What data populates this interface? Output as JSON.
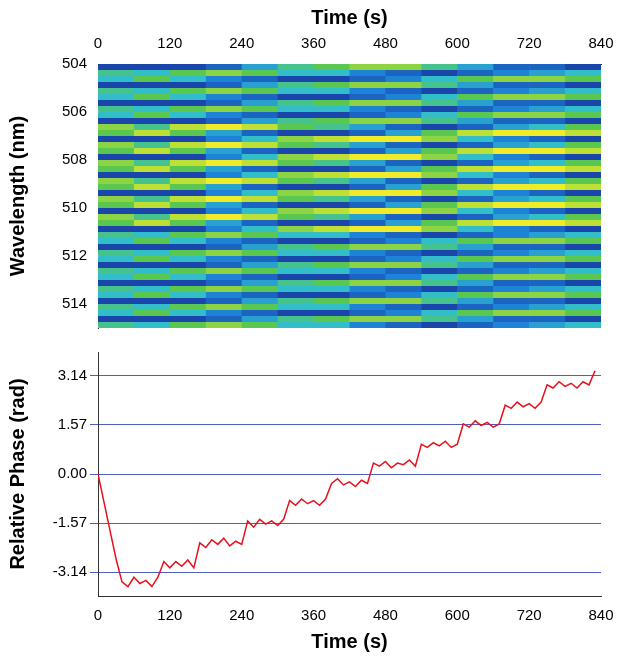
{
  "chart_data": [
    {
      "type": "heatmap",
      "x_label": "Time (s)",
      "y_label": "Wavelength (nm)",
      "xlim": [
        0,
        840
      ],
      "xticks": [
        0,
        120,
        240,
        360,
        480,
        600,
        720,
        840
      ],
      "ylim": [
        504,
        515
      ],
      "yticks": [
        504,
        506,
        508,
        510,
        512,
        514
      ],
      "grid": false,
      "x_bins": [
        0,
        60,
        120,
        180,
        240,
        300,
        360,
        420,
        480,
        540,
        600,
        660,
        720,
        780,
        840
      ],
      "y_bins": [
        504,
        504.25,
        504.5,
        504.75,
        505,
        505.25,
        505.5,
        505.75,
        506,
        506.25,
        506.5,
        506.75,
        507,
        507.25,
        507.5,
        507.75,
        508,
        508.25,
        508.5,
        508.75,
        509,
        509.25,
        509.5,
        509.75,
        510,
        510.25,
        510.5,
        510.75,
        511,
        511.25,
        511.5,
        511.75,
        512,
        512.25,
        512.5,
        512.75,
        513,
        513.25,
        513.5,
        513.75,
        514,
        514.25,
        514.5,
        514.75,
        515
      ],
      "cells": [
        [
          0.1,
          0.1,
          0.1,
          0.2,
          0.4,
          0.6,
          0.7,
          0.8,
          0.8,
          0.6,
          0.4,
          0.2,
          0.2,
          0.1
        ],
        [
          0.6,
          0.5,
          0.7,
          0.8,
          0.7,
          0.5,
          0.5,
          0.3,
          0.2,
          0.1,
          0.2,
          0.3,
          0.4,
          0.5
        ],
        [
          0.5,
          0.7,
          0.5,
          0.3,
          0.2,
          0.1,
          0.1,
          0.2,
          0.3,
          0.5,
          0.7,
          0.8,
          0.8,
          0.7
        ],
        [
          0.1,
          0.1,
          0.1,
          0.2,
          0.4,
          0.6,
          0.7,
          0.8,
          0.8,
          0.6,
          0.4,
          0.2,
          0.2,
          0.1
        ],
        [
          0.6,
          0.5,
          0.7,
          0.8,
          0.7,
          0.5,
          0.5,
          0.3,
          0.2,
          0.1,
          0.2,
          0.3,
          0.4,
          0.5
        ],
        [
          0.5,
          0.7,
          0.5,
          0.3,
          0.2,
          0.1,
          0.1,
          0.2,
          0.3,
          0.5,
          0.7,
          0.8,
          0.8,
          0.7
        ],
        [
          0.1,
          0.1,
          0.1,
          0.2,
          0.4,
          0.6,
          0.7,
          0.8,
          0.8,
          0.6,
          0.4,
          0.2,
          0.2,
          0.1
        ],
        [
          0.6,
          0.5,
          0.7,
          0.8,
          0.7,
          0.5,
          0.5,
          0.3,
          0.2,
          0.1,
          0.2,
          0.3,
          0.4,
          0.5
        ],
        [
          0.5,
          0.7,
          0.5,
          0.3,
          0.2,
          0.1,
          0.1,
          0.2,
          0.3,
          0.5,
          0.7,
          0.8,
          0.8,
          0.7
        ],
        [
          0.1,
          0.1,
          0.1,
          0.2,
          0.4,
          0.6,
          0.7,
          0.8,
          0.8,
          0.6,
          0.4,
          0.2,
          0.2,
          0.1
        ],
        [
          0.8,
          0.6,
          0.9,
          1.0,
          0.9,
          0.7,
          0.6,
          0.4,
          0.2,
          0.1,
          0.2,
          0.4,
          0.5,
          0.7
        ],
        [
          0.7,
          0.9,
          0.7,
          0.4,
          0.2,
          0.1,
          0.1,
          0.2,
          0.4,
          0.7,
          0.9,
          1.0,
          1.0,
          0.9
        ],
        [
          0.1,
          0.1,
          0.1,
          0.3,
          0.5,
          0.8,
          0.9,
          1.0,
          1.0,
          0.8,
          0.5,
          0.3,
          0.2,
          0.1
        ],
        [
          0.8,
          0.6,
          0.9,
          1.0,
          0.9,
          0.7,
          0.6,
          0.4,
          0.2,
          0.1,
          0.2,
          0.4,
          0.5,
          0.7
        ],
        [
          0.7,
          0.9,
          0.7,
          0.4,
          0.2,
          0.1,
          0.1,
          0.2,
          0.4,
          0.7,
          0.9,
          1.0,
          1.0,
          0.9
        ],
        [
          0.1,
          0.1,
          0.1,
          0.3,
          0.5,
          0.8,
          0.9,
          1.0,
          1.0,
          0.8,
          0.5,
          0.3,
          0.2,
          0.1
        ],
        [
          0.8,
          0.6,
          0.9,
          1.0,
          0.9,
          0.7,
          0.6,
          0.4,
          0.2,
          0.1,
          0.2,
          0.4,
          0.5,
          0.7
        ],
        [
          0.7,
          0.9,
          0.7,
          0.4,
          0.2,
          0.1,
          0.1,
          0.2,
          0.4,
          0.7,
          0.9,
          1.0,
          1.0,
          0.9
        ],
        [
          0.1,
          0.1,
          0.1,
          0.3,
          0.5,
          0.8,
          0.9,
          1.0,
          1.0,
          0.8,
          0.5,
          0.3,
          0.2,
          0.1
        ],
        [
          0.8,
          0.6,
          0.9,
          1.0,
          0.9,
          0.7,
          0.6,
          0.4,
          0.2,
          0.1,
          0.2,
          0.4,
          0.5,
          0.7
        ],
        [
          0.7,
          0.9,
          0.7,
          0.4,
          0.2,
          0.1,
          0.1,
          0.2,
          0.4,
          0.7,
          0.9,
          1.0,
          1.0,
          0.9
        ],
        [
          0.1,
          0.1,
          0.1,
          0.3,
          0.5,
          0.8,
          0.9,
          1.0,
          1.0,
          0.8,
          0.5,
          0.3,
          0.2,
          0.1
        ],
        [
          0.8,
          0.6,
          0.9,
          1.0,
          0.9,
          0.7,
          0.6,
          0.4,
          0.2,
          0.1,
          0.2,
          0.4,
          0.5,
          0.7
        ],
        [
          0.7,
          0.9,
          0.7,
          0.4,
          0.2,
          0.1,
          0.1,
          0.2,
          0.4,
          0.7,
          0.9,
          1.0,
          1.0,
          0.9
        ],
        [
          0.1,
          0.1,
          0.1,
          0.3,
          0.5,
          0.8,
          0.9,
          1.0,
          1.0,
          0.8,
          0.5,
          0.3,
          0.2,
          0.1
        ],
        [
          0.8,
          0.6,
          0.9,
          1.0,
          0.9,
          0.7,
          0.6,
          0.4,
          0.2,
          0.1,
          0.2,
          0.4,
          0.5,
          0.7
        ],
        [
          0.7,
          0.9,
          0.7,
          0.4,
          0.2,
          0.1,
          0.1,
          0.2,
          0.4,
          0.7,
          0.9,
          1.0,
          1.0,
          0.9
        ],
        [
          0.1,
          0.1,
          0.1,
          0.3,
          0.5,
          0.8,
          0.9,
          1.0,
          1.0,
          0.8,
          0.5,
          0.3,
          0.2,
          0.1
        ],
        [
          0.6,
          0.5,
          0.7,
          0.8,
          0.7,
          0.5,
          0.5,
          0.3,
          0.2,
          0.1,
          0.2,
          0.3,
          0.4,
          0.5
        ],
        [
          0.5,
          0.7,
          0.5,
          0.3,
          0.2,
          0.1,
          0.1,
          0.2,
          0.3,
          0.5,
          0.7,
          0.8,
          0.8,
          0.7
        ],
        [
          0.1,
          0.1,
          0.1,
          0.2,
          0.4,
          0.6,
          0.7,
          0.8,
          0.8,
          0.6,
          0.4,
          0.2,
          0.2,
          0.1
        ],
        [
          0.6,
          0.5,
          0.7,
          0.8,
          0.7,
          0.5,
          0.5,
          0.3,
          0.2,
          0.1,
          0.2,
          0.3,
          0.4,
          0.5
        ],
        [
          0.5,
          0.7,
          0.5,
          0.3,
          0.2,
          0.1,
          0.1,
          0.2,
          0.3,
          0.5,
          0.7,
          0.8,
          0.8,
          0.7
        ],
        [
          0.1,
          0.1,
          0.1,
          0.2,
          0.4,
          0.6,
          0.7,
          0.8,
          0.8,
          0.6,
          0.4,
          0.2,
          0.2,
          0.1
        ],
        [
          0.6,
          0.5,
          0.7,
          0.8,
          0.7,
          0.5,
          0.5,
          0.3,
          0.2,
          0.1,
          0.2,
          0.3,
          0.4,
          0.5
        ],
        [
          0.5,
          0.7,
          0.5,
          0.3,
          0.2,
          0.1,
          0.1,
          0.2,
          0.3,
          0.5,
          0.7,
          0.8,
          0.8,
          0.7
        ],
        [
          0.1,
          0.1,
          0.1,
          0.2,
          0.4,
          0.6,
          0.7,
          0.8,
          0.8,
          0.6,
          0.4,
          0.2,
          0.2,
          0.1
        ],
        [
          0.6,
          0.5,
          0.7,
          0.8,
          0.7,
          0.5,
          0.5,
          0.3,
          0.2,
          0.1,
          0.2,
          0.3,
          0.4,
          0.5
        ],
        [
          0.5,
          0.7,
          0.5,
          0.3,
          0.2,
          0.1,
          0.1,
          0.2,
          0.3,
          0.5,
          0.7,
          0.8,
          0.8,
          0.7
        ],
        [
          0.1,
          0.1,
          0.1,
          0.2,
          0.4,
          0.6,
          0.7,
          0.8,
          0.8,
          0.6,
          0.4,
          0.2,
          0.2,
          0.1
        ],
        [
          0.6,
          0.5,
          0.7,
          0.8,
          0.7,
          0.5,
          0.5,
          0.3,
          0.2,
          0.1,
          0.2,
          0.3,
          0.4,
          0.5
        ],
        [
          0.5,
          0.7,
          0.5,
          0.3,
          0.2,
          0.1,
          0.1,
          0.2,
          0.3,
          0.5,
          0.7,
          0.8,
          0.8,
          0.7
        ],
        [
          0.1,
          0.1,
          0.1,
          0.2,
          0.4,
          0.6,
          0.7,
          0.8,
          0.8,
          0.6,
          0.4,
          0.2,
          0.2,
          0.1
        ],
        [
          0.6,
          0.5,
          0.7,
          0.8,
          0.7,
          0.5,
          0.5,
          0.3,
          0.2,
          0.1,
          0.2,
          0.3,
          0.4,
          0.5
        ]
      ]
    },
    {
      "type": "line",
      "x_label": "Time (s)",
      "y_label": "Relative Phase (rad)",
      "xlim": [
        0,
        840
      ],
      "xticks": [
        0,
        120,
        240,
        360,
        480,
        600,
        720,
        840
      ],
      "ylim": [
        -3.9,
        3.9
      ],
      "yticks": [
        -3.14,
        -1.57,
        {
          "value": 0,
          "label": "0.00"
        },
        1.57,
        3.14
      ],
      "grid": true,
      "color": "#e8101a",
      "x": [
        0,
        10,
        20,
        30,
        40,
        50,
        60,
        70,
        80,
        90,
        100,
        110,
        120,
        130,
        140,
        150,
        160,
        170,
        180,
        190,
        200,
        210,
        220,
        230,
        240,
        250,
        260,
        270,
        280,
        290,
        300,
        310,
        320,
        330,
        340,
        350,
        360,
        370,
        380,
        390,
        400,
        410,
        420,
        430,
        440,
        450,
        460,
        470,
        480,
        490,
        500,
        510,
        520,
        530,
        540,
        550,
        560,
        570,
        580,
        590,
        600,
        610,
        620,
        630,
        640,
        650,
        660,
        670,
        680,
        690,
        700,
        710,
        720,
        730,
        740,
        750,
        760,
        770,
        780,
        790,
        800,
        810,
        820,
        830
      ],
      "values": [
        0.0,
        -0.9,
        -1.8,
        -2.7,
        -3.45,
        -3.6,
        -3.3,
        -3.5,
        -3.4,
        -3.6,
        -3.3,
        -2.8,
        -3.0,
        -2.8,
        -2.95,
        -2.75,
        -3.0,
        -2.2,
        -2.35,
        -2.1,
        -2.25,
        -2.05,
        -2.3,
        -2.15,
        -2.25,
        -1.5,
        -1.7,
        -1.45,
        -1.6,
        -1.5,
        -1.65,
        -1.45,
        -0.85,
        -1.0,
        -0.8,
        -0.95,
        -0.85,
        -1.0,
        -0.8,
        -0.3,
        -0.15,
        -0.35,
        -0.25,
        -0.4,
        -0.2,
        -0.3,
        0.35,
        0.25,
        0.4,
        0.2,
        0.35,
        0.3,
        0.45,
        0.25,
        0.95,
        0.85,
        1.0,
        0.9,
        1.05,
        0.85,
        0.95,
        1.6,
        1.5,
        1.7,
        1.55,
        1.65,
        1.5,
        1.6,
        2.2,
        2.1,
        2.3,
        2.15,
        2.25,
        2.1,
        2.3,
        2.85,
        2.75,
        2.95,
        2.8,
        2.9,
        2.75,
        2.95,
        2.85,
        3.3
      ]
    }
  ]
}
